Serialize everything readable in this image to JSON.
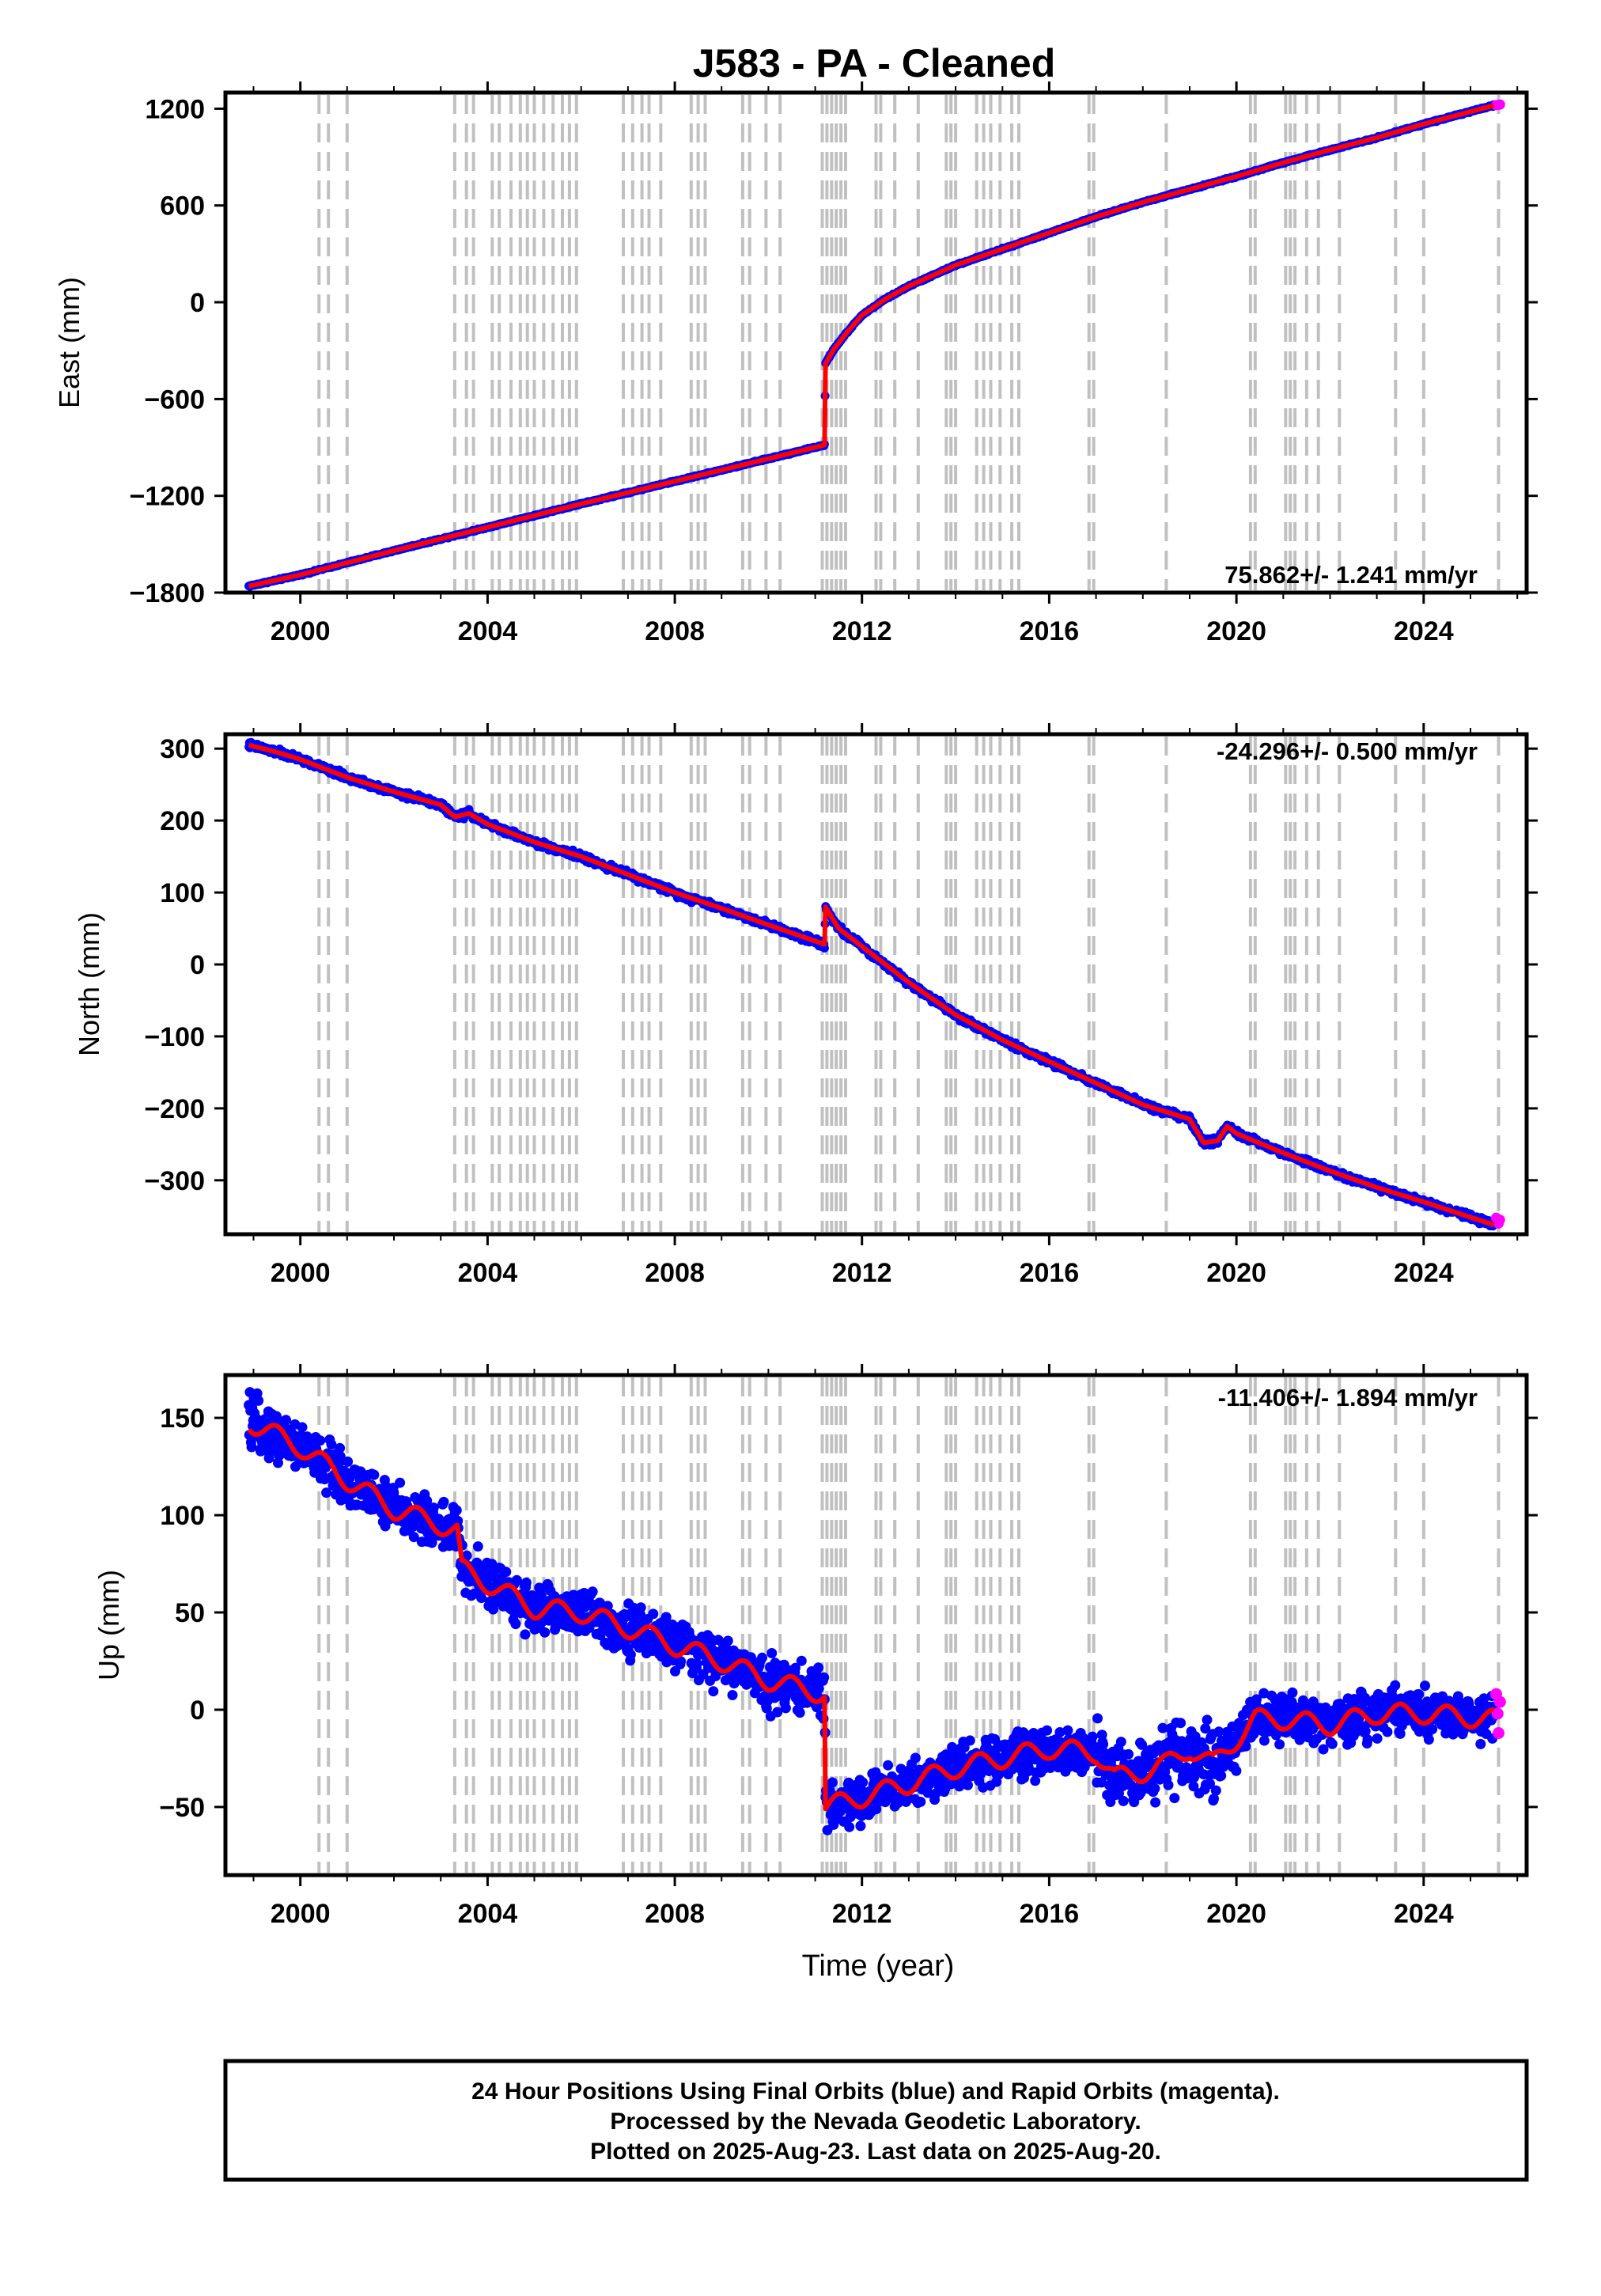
{
  "figure": {
    "title": "J583  - PA - Cleaned",
    "xlabel": "Time (year)",
    "footer": [
      "24 Hour Positions Using Final Orbits (blue) and Rapid Orbits (magenta).",
      "Processed by the Nevada Geodetic Laboratory.",
      "Plotted on 2025-Aug-23. Last data on 2025-Aug-20."
    ]
  },
  "colors": {
    "final_orbits": "#0000ff",
    "rapid_orbits": "#ff00ff",
    "model": "#ff0000",
    "events": "#c0c0c0",
    "frame": "#000000"
  },
  "chart_data": [
    {
      "type": "scatter",
      "panel": "east",
      "ylabel": "East (mm)",
      "rate_label": "75.862+/- 1.241 mm/yr",
      "xlim": [
        1998.4,
        2026.2
      ],
      "ylim": [
        -1800,
        1300
      ],
      "x_ticks": [
        2000,
        2004,
        2008,
        2012,
        2016,
        2020,
        2024
      ],
      "y_ticks": [
        -1800,
        -1200,
        -600,
        0,
        600,
        1200
      ],
      "grid": false,
      "series": [
        {
          "name": "Final Orbits (blue)",
          "x": [
            1998.9,
            2000.0,
            2002.0,
            2004.0,
            2006.0,
            2008.0,
            2010.0,
            2011.2,
            2011.22,
            2011.4,
            2011.7,
            2012.0,
            2012.5,
            2013.0,
            2014.0,
            2015.0,
            2016.0,
            2017.0,
            2018.0,
            2019.0,
            2020.0,
            2021.0,
            2022.0,
            2023.0,
            2024.0,
            2025.5
          ],
          "y": [
            -1760,
            -1690,
            -1540,
            -1395,
            -1250,
            -1110,
            -970,
            -885,
            -380,
            -290,
            -180,
            -80,
            20,
            100,
            230,
            330,
            430,
            530,
            620,
            700,
            780,
            865,
            945,
            1020,
            1105,
            1220
          ]
        },
        {
          "name": "Rapid Orbits (magenta)",
          "x": [
            2025.55,
            2025.6,
            2025.63
          ],
          "y": [
            1222,
            1224,
            1226
          ]
        }
      ]
    },
    {
      "type": "scatter",
      "panel": "north",
      "ylabel": "North (mm)",
      "rate_label": "-24.296+/- 0.500 mm/yr",
      "xlim": [
        1998.4,
        2026.2
      ],
      "ylim": [
        -375,
        320
      ],
      "x_ticks": [
        2000,
        2004,
        2008,
        2012,
        2016,
        2020,
        2024
      ],
      "y_ticks": [
        -300,
        -200,
        -100,
        0,
        100,
        200,
        300
      ],
      "grid": false,
      "series": [
        {
          "name": "Final Orbits (blue)",
          "x": [
            1998.9,
            1999.5,
            2000.0,
            2001.0,
            2002.0,
            2003.0,
            2003.3,
            2003.6,
            2004.0,
            2005.0,
            2006.0,
            2007.0,
            2008.0,
            2009.0,
            2010.0,
            2011.2,
            2011.22,
            2011.5,
            2012.0,
            2013.0,
            2014.0,
            2015.0,
            2016.0,
            2017.0,
            2018.0,
            2019.0,
            2019.3,
            2019.6,
            2019.8,
            2020.0,
            2021.0,
            2022.0,
            2023.0,
            2024.0,
            2025.5
          ],
          "y": [
            305,
            295,
            285,
            260,
            240,
            222,
            205,
            210,
            195,
            170,
            150,
            125,
            100,
            78,
            55,
            28,
            80,
            50,
            25,
            -25,
            -70,
            -105,
            -135,
            -165,
            -195,
            -215,
            -248,
            -245,
            -225,
            -235,
            -262,
            -287,
            -310,
            -330,
            -362
          ]
        },
        {
          "name": "Rapid Orbits (magenta)",
          "x": [
            2025.55,
            2025.6,
            2025.63
          ],
          "y": [
            -352,
            -360,
            -355
          ]
        }
      ]
    },
    {
      "type": "scatter",
      "panel": "up",
      "ylabel": "Up (mm)",
      "rate_label": "-11.406+/- 1.894 mm/yr",
      "xlim": [
        1998.4,
        2026.2
      ],
      "ylim": [
        -85,
        172
      ],
      "x_ticks": [
        2000,
        2004,
        2008,
        2012,
        2016,
        2020,
        2024
      ],
      "y_ticks": [
        -50,
        0,
        50,
        100,
        150
      ],
      "grid": false,
      "series": [
        {
          "name": "Final Orbits (blue)",
          "x": [
            1998.9,
            2000.0,
            2001.0,
            2002.0,
            2003.0,
            2003.35,
            2003.45,
            2004.0,
            2005.0,
            2006.0,
            2007.0,
            2008.0,
            2009.0,
            2010.0,
            2011.2,
            2011.22,
            2012.0,
            2013.0,
            2014.0,
            2015.0,
            2016.0,
            2017.0,
            2017.4,
            2018.0,
            2018.5,
            2019.0,
            2019.5,
            2020.0,
            2020.4,
            2021.0,
            2022.0,
            2023.0,
            2024.0,
            2025.5
          ],
          "y": [
            148,
            135,
            118,
            103,
            95,
            92,
            72,
            65,
            52,
            50,
            42,
            33,
            25,
            15,
            8,
            -50,
            -45,
            -38,
            -30,
            -25,
            -20,
            -22,
            -35,
            -32,
            -28,
            -20,
            -28,
            -15,
            -5,
            -5,
            -8,
            -2,
            -2,
            -5
          ]
        },
        {
          "name": "Rapid Orbits (magenta)",
          "x": [
            2025.55,
            2025.58,
            2025.6,
            2025.63
          ],
          "y": [
            8,
            -2,
            -12,
            4
          ]
        }
      ]
    }
  ],
  "event_lines": [
    2000.4,
    2000.6,
    2001.0,
    2003.3,
    2003.55,
    2003.7,
    2004.1,
    2004.25,
    2004.5,
    2004.7,
    2004.85,
    2005.0,
    2005.2,
    2005.4,
    2005.6,
    2005.75,
    2005.9,
    2006.9,
    2007.1,
    2007.3,
    2007.45,
    2007.7,
    2008.35,
    2008.5,
    2008.65,
    2009.45,
    2009.6,
    2009.95,
    2010.25,
    2011.15,
    2011.25,
    2011.35,
    2011.45,
    2011.55,
    2011.65,
    2012.3,
    2012.4,
    2012.7,
    2013.2,
    2013.8,
    2013.9,
    2014.0,
    2014.45,
    2014.6,
    2014.75,
    2014.95,
    2015.2,
    2015.35,
    2016.85,
    2016.95,
    2018.5,
    2020.3,
    2020.4,
    2021.05,
    2021.15,
    2021.25,
    2021.5,
    2021.75,
    2022.2,
    2023.4,
    2024.0,
    2025.6
  ]
}
